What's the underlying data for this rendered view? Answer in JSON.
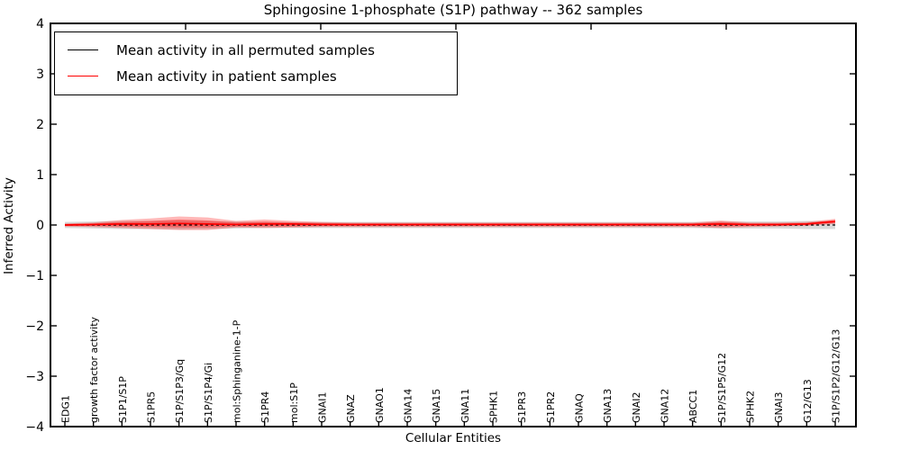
{
  "title": "Sphingosine 1-phosphate (S1P) pathway -- 362 samples",
  "legend": {
    "items": [
      {
        "label": "Mean activity in all permuted samples",
        "color": "#000000"
      },
      {
        "label": "Mean activity in patient samples",
        "color": "#ff0000"
      }
    ]
  },
  "axes": {
    "ylabel": "Inferred Activity",
    "xlabel": "Cellular Entities",
    "yticks": [
      "4",
      "3",
      "2",
      "1",
      "0",
      "−1",
      "−2",
      "−3",
      "−4"
    ]
  },
  "chart_data": {
    "type": "line",
    "title": "Sphingosine 1-phosphate (S1P) pathway -- 362 samples",
    "xlabel": "Cellular Entities",
    "ylabel": "Inferred Activity",
    "ylim": [
      -4,
      4
    ],
    "grid": false,
    "legend_position": "upper left",
    "categories": [
      "EDG1",
      "growth factor activity",
      "S1P1/S1P",
      "S1PR5",
      "S1P/S1P3/Gq",
      "S1P/S1P4/Gi",
      "mol:Sphinganine-1-P",
      "S1PR4",
      "mol:S1P",
      "GNAI1",
      "GNAZ",
      "GNAO1",
      "GNA14",
      "GNA15",
      "GNA11",
      "SPHK1",
      "S1PR3",
      "S1PR2",
      "GNAQ",
      "GNA13",
      "GNAI2",
      "GNA12",
      "ABCC1",
      "S1P/S1P5/G12",
      "SPHK2",
      "GNAI3",
      "G12/G13",
      "S1P/S1P2/G12/G13"
    ],
    "series": [
      {
        "name": "Mean activity in all permuted samples",
        "color": "#000000",
        "style": "dashed",
        "width": 1.3,
        "values": [
          0,
          0,
          0,
          0,
          0,
          0,
          0,
          0,
          0,
          0,
          0,
          0,
          0,
          0,
          0,
          0,
          0,
          0,
          0,
          0,
          0,
          0,
          0,
          0,
          0,
          0,
          0,
          0
        ]
      },
      {
        "name": "Mean activity in patient samples",
        "color": "#ff0000",
        "style": "solid",
        "width": 1.7,
        "values": [
          0.0,
          0.01,
          0.02,
          0.02,
          0.03,
          0.02,
          0.01,
          0.02,
          0.02,
          0.01,
          0.01,
          0.01,
          0.01,
          0.01,
          0.01,
          0.01,
          0.01,
          0.01,
          0.01,
          0.01,
          0.01,
          0.01,
          0.01,
          0.02,
          0.01,
          0.01,
          0.02,
          0.07
        ]
      }
    ],
    "bands": [
      {
        "name": "permuted-std-band",
        "color": "#000000",
        "opacity": 0.15,
        "upper": [
          0.06,
          0.07,
          0.08,
          0.08,
          0.09,
          0.08,
          0.07,
          0.06,
          0.06,
          0.06,
          0.06,
          0.06,
          0.06,
          0.06,
          0.06,
          0.06,
          0.06,
          0.06,
          0.06,
          0.06,
          0.06,
          0.06,
          0.06,
          0.07,
          0.07,
          0.07,
          0.08,
          0.08
        ],
        "lower": [
          -0.06,
          -0.07,
          -0.08,
          -0.08,
          -0.09,
          -0.08,
          -0.07,
          -0.06,
          -0.06,
          -0.06,
          -0.06,
          -0.06,
          -0.06,
          -0.06,
          -0.06,
          -0.06,
          -0.06,
          -0.06,
          -0.06,
          -0.06,
          -0.06,
          -0.06,
          -0.06,
          -0.07,
          -0.07,
          -0.07,
          -0.08,
          -0.08
        ]
      },
      {
        "name": "patient-std-band-outer",
        "color": "#ff0000",
        "opacity": 0.28,
        "upper": [
          0.03,
          0.05,
          0.1,
          0.13,
          0.17,
          0.15,
          0.08,
          0.11,
          0.08,
          0.06,
          0.05,
          0.05,
          0.05,
          0.05,
          0.05,
          0.05,
          0.05,
          0.05,
          0.05,
          0.05,
          0.05,
          0.05,
          0.05,
          0.09,
          0.05,
          0.05,
          0.06,
          0.12
        ],
        "lower": [
          -0.03,
          -0.04,
          -0.06,
          -0.08,
          -0.1,
          -0.1,
          -0.05,
          -0.06,
          -0.05,
          -0.04,
          -0.04,
          -0.04,
          -0.04,
          -0.04,
          -0.04,
          -0.04,
          -0.04,
          -0.04,
          -0.04,
          -0.04,
          -0.04,
          -0.04,
          -0.04,
          -0.06,
          -0.04,
          -0.03,
          -0.02,
          0.02
        ],
        "note": "std shading of patient samples"
      },
      {
        "name": "patient-std-band-inner",
        "color": "#ff0000",
        "opacity": 0.35,
        "upper": [
          0.02,
          0.03,
          0.06,
          0.08,
          0.11,
          0.09,
          0.05,
          0.07,
          0.05,
          0.04,
          0.03,
          0.03,
          0.03,
          0.03,
          0.03,
          0.03,
          0.03,
          0.03,
          0.03,
          0.03,
          0.03,
          0.03,
          0.03,
          0.06,
          0.03,
          0.03,
          0.04,
          0.1
        ],
        "lower": [
          -0.02,
          -0.02,
          -0.03,
          -0.04,
          -0.05,
          -0.05,
          -0.03,
          -0.03,
          -0.03,
          -0.02,
          -0.02,
          -0.02,
          -0.02,
          -0.02,
          -0.02,
          -0.02,
          -0.02,
          -0.02,
          -0.02,
          -0.02,
          -0.02,
          -0.02,
          -0.02,
          -0.03,
          -0.02,
          -0.02,
          0.0,
          0.04
        ]
      }
    ]
  }
}
